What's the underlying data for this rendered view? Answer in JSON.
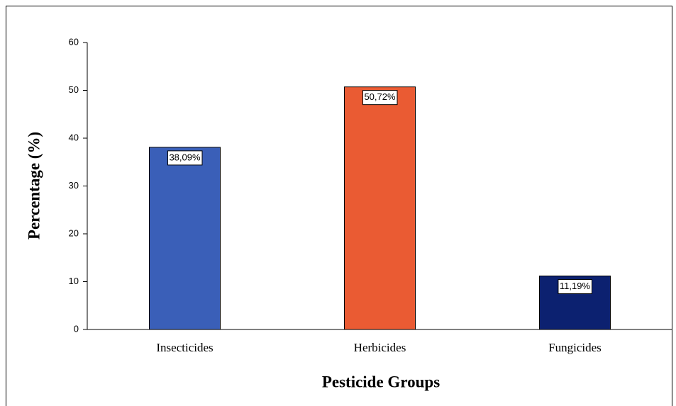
{
  "chart_data": {
    "type": "bar",
    "x_label": "Pesticide Groups",
    "y_label": "Percentage (%)",
    "categories": [
      "Insecticides",
      "Herbicides",
      "Fungicides"
    ],
    "values": [
      38.09,
      50.72,
      11.19
    ],
    "value_labels": [
      "38,09%",
      "50,72%",
      "11,19%"
    ],
    "colors": [
      "#3a5fb8",
      "#ea5b33",
      "#0c2170"
    ],
    "ylim": [
      0,
      60
    ],
    "yticks": [
      0,
      10,
      20,
      30,
      40,
      50,
      60
    ],
    "grid": false
  }
}
